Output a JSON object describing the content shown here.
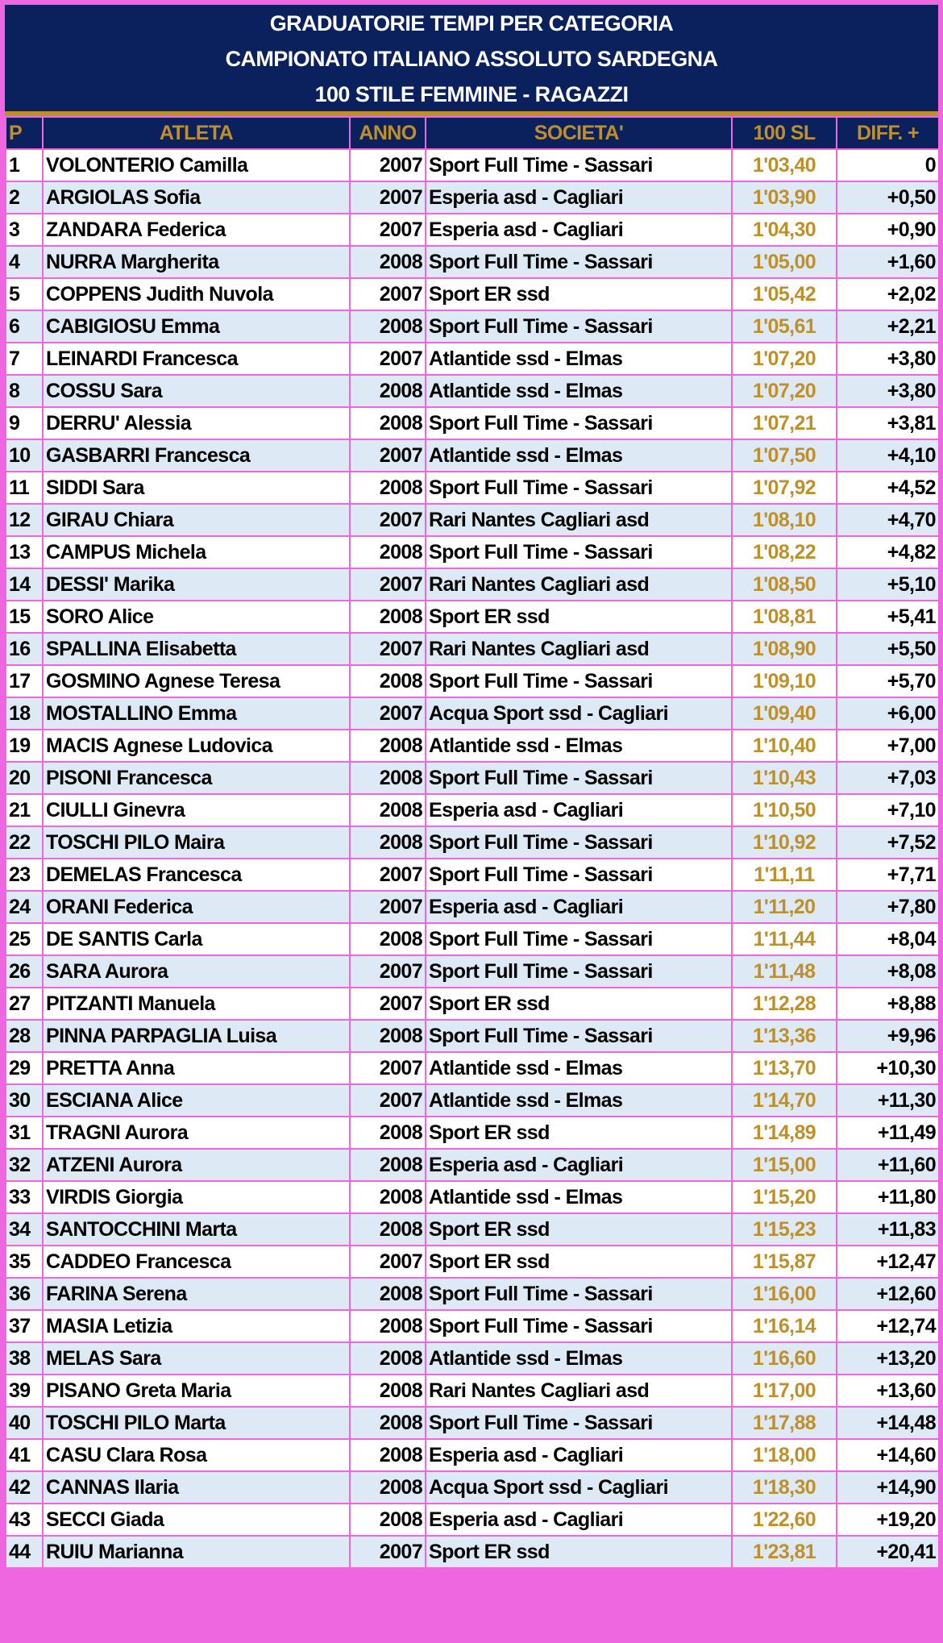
{
  "title": {
    "line1": "GRADUATORIE TEMPI PER CATEGORIA",
    "line2": "CAMPIONATO ITALIANO ASSOLUTO SARDEGNA",
    "line3": "100 STILE FEMMINE - RAGAZZI"
  },
  "colors": {
    "navy": "#0b215e",
    "gold": "#bf8f2a",
    "border": "#ee66e0",
    "alt_row": "#dde9f5"
  },
  "headers": {
    "p": "P",
    "atleta": "ATLETA",
    "anno": "ANNO",
    "societa": "SOCIETA'",
    "time": "100 SL",
    "diff": "DIFF. +"
  },
  "rows": [
    [
      "1",
      "VOLONTERIO Camilla",
      "2007",
      "Sport Full Time - Sassari",
      "1'03,40",
      "0"
    ],
    [
      "2",
      "ARGIOLAS Sofia",
      "2007",
      "Esperia asd - Cagliari",
      "1'03,90",
      "+0,50"
    ],
    [
      "3",
      "ZANDARA Federica",
      "2007",
      "Esperia asd - Cagliari",
      "1'04,30",
      "+0,90"
    ],
    [
      "4",
      "NURRA Margherita",
      "2008",
      "Sport Full Time - Sassari",
      "1'05,00",
      "+1,60"
    ],
    [
      "5",
      "COPPENS Judith Nuvola",
      "2007",
      "Sport ER ssd",
      "1'05,42",
      "+2,02"
    ],
    [
      "6",
      "CABIGIOSU Emma",
      "2008",
      "Sport Full Time - Sassari",
      "1'05,61",
      "+2,21"
    ],
    [
      "7",
      "LEINARDI Francesca",
      "2007",
      "Atlantide ssd - Elmas",
      "1'07,20",
      "+3,80"
    ],
    [
      "8",
      "COSSU Sara",
      "2008",
      "Atlantide ssd - Elmas",
      "1'07,20",
      "+3,80"
    ],
    [
      "9",
      "DERRU' Alessia",
      "2008",
      "Sport Full Time - Sassari",
      "1'07,21",
      "+3,81"
    ],
    [
      "10",
      "GASBARRI Francesca",
      "2007",
      "Atlantide ssd - Elmas",
      "1'07,50",
      "+4,10"
    ],
    [
      "11",
      "SIDDI Sara",
      "2008",
      "Sport Full Time - Sassari",
      "1'07,92",
      "+4,52"
    ],
    [
      "12",
      "GIRAU Chiara",
      "2007",
      "Rari Nantes Cagliari asd",
      "1'08,10",
      "+4,70"
    ],
    [
      "13",
      "CAMPUS Michela",
      "2008",
      "Sport Full Time - Sassari",
      "1'08,22",
      "+4,82"
    ],
    [
      "14",
      "DESSI' Marika",
      "2007",
      "Rari Nantes Cagliari asd",
      "1'08,50",
      "+5,10"
    ],
    [
      "15",
      "SORO Alice",
      "2008",
      "Sport ER ssd",
      "1'08,81",
      "+5,41"
    ],
    [
      "16",
      "SPALLINA Elisabetta",
      "2007",
      "Rari Nantes Cagliari asd",
      "1'08,90",
      "+5,50"
    ],
    [
      "17",
      "GOSMINO Agnese Teresa",
      "2008",
      "Sport Full Time - Sassari",
      "1'09,10",
      "+5,70"
    ],
    [
      "18",
      "MOSTALLINO Emma",
      "2007",
      "Acqua Sport ssd - Cagliari",
      "1'09,40",
      "+6,00"
    ],
    [
      "19",
      "MACIS Agnese Ludovica",
      "2008",
      "Atlantide ssd - Elmas",
      "1'10,40",
      "+7,00"
    ],
    [
      "20",
      "PISONI Francesca",
      "2008",
      "Sport Full Time - Sassari",
      "1'10,43",
      "+7,03"
    ],
    [
      "21",
      "CIULLI Ginevra",
      "2008",
      "Esperia asd - Cagliari",
      "1'10,50",
      "+7,10"
    ],
    [
      "22",
      "TOSCHI PILO Maira",
      "2008",
      "Sport Full Time - Sassari",
      "1'10,92",
      "+7,52"
    ],
    [
      "23",
      "DEMELAS Francesca",
      "2007",
      "Sport Full Time - Sassari",
      "1'11,11",
      "+7,71"
    ],
    [
      "24",
      "ORANI Federica",
      "2007",
      "Esperia asd - Cagliari",
      "1'11,20",
      "+7,80"
    ],
    [
      "25",
      "DE SANTIS Carla",
      "2008",
      "Sport Full Time - Sassari",
      "1'11,44",
      "+8,04"
    ],
    [
      "26",
      "SARA Aurora",
      "2007",
      "Sport Full Time - Sassari",
      "1'11,48",
      "+8,08"
    ],
    [
      "27",
      "PITZANTI Manuela",
      "2007",
      "Sport ER ssd",
      "1'12,28",
      "+8,88"
    ],
    [
      "28",
      "PINNA PARPAGLIA Luisa",
      "2008",
      "Sport Full Time - Sassari",
      "1'13,36",
      "+9,96"
    ],
    [
      "29",
      "PRETTA Anna",
      "2007",
      "Atlantide ssd - Elmas",
      "1'13,70",
      "+10,30"
    ],
    [
      "30",
      "ESCIANA Alice",
      "2007",
      "Atlantide ssd - Elmas",
      "1'14,70",
      "+11,30"
    ],
    [
      "31",
      "TRAGNI Aurora",
      "2008",
      "Sport ER ssd",
      "1'14,89",
      "+11,49"
    ],
    [
      "32",
      "ATZENI Aurora",
      "2008",
      "Esperia asd - Cagliari",
      "1'15,00",
      "+11,60"
    ],
    [
      "33",
      "VIRDIS Giorgia",
      "2008",
      "Atlantide ssd - Elmas",
      "1'15,20",
      "+11,80"
    ],
    [
      "34",
      "SANTOCCHINI Marta",
      "2008",
      "Sport ER ssd",
      "1'15,23",
      "+11,83"
    ],
    [
      "35",
      "CADDEO Francesca",
      "2007",
      "Sport ER ssd",
      "1'15,87",
      "+12,47"
    ],
    [
      "36",
      "FARINA Serena",
      "2008",
      "Sport Full Time - Sassari",
      "1'16,00",
      "+12,60"
    ],
    [
      "37",
      "MASIA Letizia",
      "2008",
      "Sport Full Time - Sassari",
      "1'16,14",
      "+12,74"
    ],
    [
      "38",
      "MELAS Sara",
      "2008",
      "Atlantide ssd - Elmas",
      "1'16,60",
      "+13,20"
    ],
    [
      "39",
      "PISANO Greta Maria",
      "2008",
      "Rari Nantes Cagliari asd",
      "1'17,00",
      "+13,60"
    ],
    [
      "40",
      "TOSCHI PILO Marta",
      "2008",
      "Sport Full Time - Sassari",
      "1'17,88",
      "+14,48"
    ],
    [
      "41",
      "CASU Clara Rosa",
      "2008",
      "Esperia asd - Cagliari",
      "1'18,00",
      "+14,60"
    ],
    [
      "42",
      "CANNAS Ilaria",
      "2008",
      "Acqua Sport ssd - Cagliari",
      "1'18,30",
      "+14,90"
    ],
    [
      "43",
      "SECCI Giada",
      "2008",
      "Esperia asd - Cagliari",
      "1'22,60",
      "+19,20"
    ],
    [
      "44",
      "RUIU Marianna",
      "2007",
      "Sport ER ssd",
      "1'23,81",
      "+20,41"
    ]
  ]
}
